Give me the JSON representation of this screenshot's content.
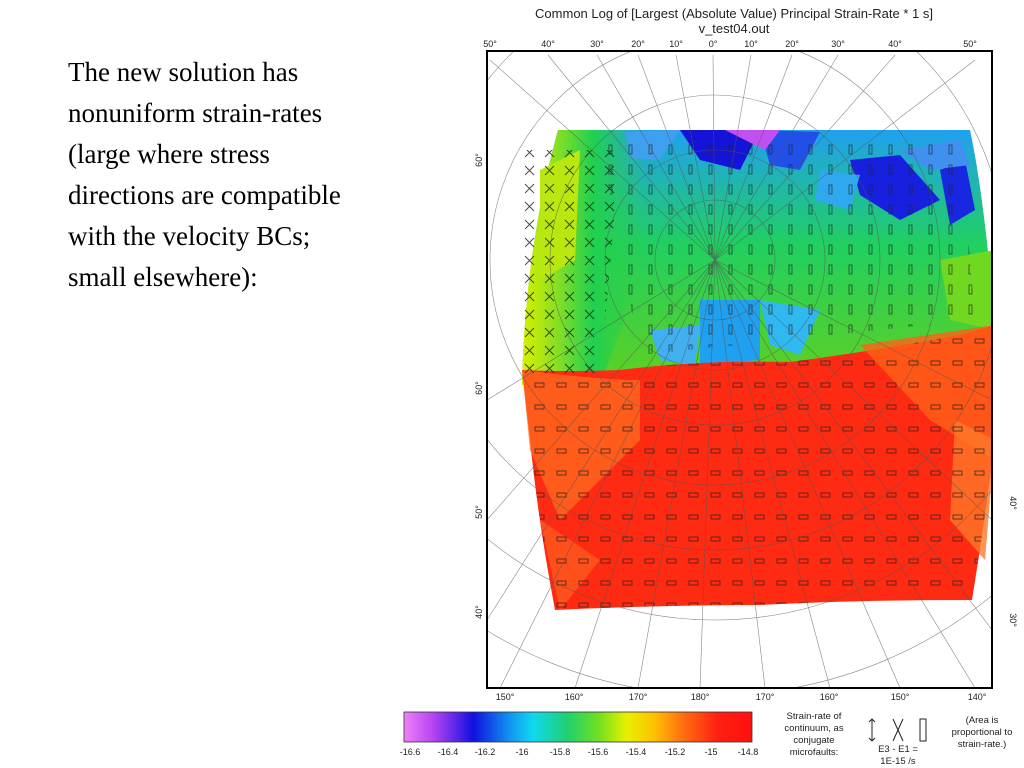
{
  "slide": {
    "lines": [
      "The new solution has",
      "nonuniform strain-rates",
      "(large where stress",
      "directions are compatible",
      "with the velocity BCs;",
      "small elsewhere):"
    ]
  },
  "figure": {
    "title": "Common Log of [Largest (Absolute Value) Principal Strain-Rate * 1 s]",
    "subtitle": "v_test04.out",
    "top_ticks": [
      "50°",
      "40°",
      "30°",
      "20°",
      "10°",
      "0°",
      "10°",
      "20°",
      "30°",
      "40°",
      "50°"
    ],
    "bottom_ticks": [
      "150°",
      "160°",
      "170°",
      "180°",
      "170°",
      "160°",
      "150°",
      "140°"
    ],
    "left_ticks": [
      "60°",
      "60°",
      "50°",
      "40°"
    ],
    "right_ticks": [
      "40°",
      "30°"
    ],
    "colorbar_ticks": [
      "-16.6",
      "-16.4",
      "-16.2",
      "-16",
      "-15.8",
      "-15.6",
      "-15.4",
      "-15.2",
      "-15",
      "-14.8"
    ],
    "colors": {
      "magenta": "#e070f8",
      "blue": "#1010e0",
      "cyan": "#10c8f0",
      "green": "#20d040",
      "yellow": "#f0f000",
      "orange": "#ff9020",
      "red": "#ff2010"
    },
    "legend": {
      "strain_label": [
        "Strain-rate of",
        "continuum, as",
        "conjugate",
        "microfaults:"
      ],
      "scale_label": [
        "E3 - E1 =",
        "1E-15 /s"
      ],
      "area_note": [
        "(Area is",
        "proportional to",
        "strain-rate.)"
      ]
    }
  }
}
